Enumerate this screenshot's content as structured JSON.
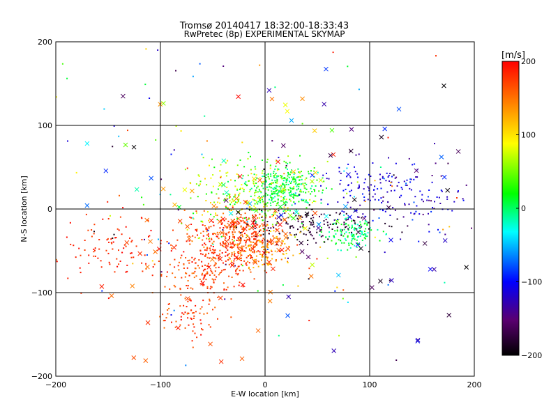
{
  "chart_data": {
    "type": "scatter",
    "title": "Tromsø 20140417 18:32:00-18:33:43",
    "subtitle": "RwPretec (8p) EXPERIMENTAL SKYMAP",
    "xlabel": "E-W location [km]",
    "ylabel": "N-S location [km]",
    "xlim": [
      -200,
      200
    ],
    "ylim": [
      -200,
      200
    ],
    "xticks": [
      -200,
      -100,
      0,
      100,
      200
    ],
    "yticks": [
      -200,
      -100,
      0,
      100,
      200
    ],
    "grid": true,
    "colorbar": {
      "label": "[m/s]",
      "range": [
        -200,
        200
      ],
      "ticks": [
        200,
        100,
        0,
        -100,
        -200
      ],
      "colormap": "rainbow",
      "stops": [
        "#000000",
        "#5a0070",
        "#0000ff",
        "#00ffff",
        "#00ff00",
        "#ffff00",
        "#ff0000"
      ]
    },
    "clusters": [
      {
        "x": -25,
        "y": -35,
        "sx": 20,
        "sy": 17,
        "n": 420,
        "vmin": 140,
        "vmax": 200
      },
      {
        "x": -60,
        "y": -70,
        "sx": 22,
        "sy": 22,
        "n": 200,
        "vmin": 150,
        "vmax": 200
      },
      {
        "x": -145,
        "y": -45,
        "sx": 22,
        "sy": 20,
        "n": 90,
        "vmin": 170,
        "vmax": 200
      },
      {
        "x": -70,
        "y": -130,
        "sx": 14,
        "sy": 12,
        "n": 55,
        "vmin": 150,
        "vmax": 200
      },
      {
        "x": 20,
        "y": 25,
        "sx": 18,
        "sy": 15,
        "n": 300,
        "vmin": -20,
        "vmax": 40
      },
      {
        "x": -15,
        "y": 15,
        "sx": 30,
        "sy": 22,
        "n": 260,
        "vmin": 10,
        "vmax": 110
      },
      {
        "x": 80,
        "y": -30,
        "sx": 14,
        "sy": 9,
        "n": 130,
        "vmin": -30,
        "vmax": 30
      },
      {
        "x": 40,
        "y": -20,
        "sx": 35,
        "sy": 10,
        "n": 150,
        "vmin": -200,
        "vmax": -160
      },
      {
        "x": 105,
        "y": 25,
        "sx": 25,
        "sy": 18,
        "n": 120,
        "vmin": -140,
        "vmax": -90
      },
      {
        "x": 150,
        "y": 5,
        "sx": 25,
        "sy": 18,
        "n": 60,
        "vmin": -160,
        "vmax": -70
      },
      {
        "x": 0,
        "y": -50,
        "sx": 14,
        "sy": 12,
        "n": 80,
        "vmin": 100,
        "vmax": 140
      },
      {
        "x": 0,
        "y": 0,
        "sx": 120,
        "sy": 120,
        "n": 180,
        "vmin": -200,
        "vmax": 200
      }
    ],
    "crosses": {
      "n": 180,
      "x_range": [
        -190,
        195
      ],
      "y_range": [
        -185,
        170
      ]
    }
  }
}
